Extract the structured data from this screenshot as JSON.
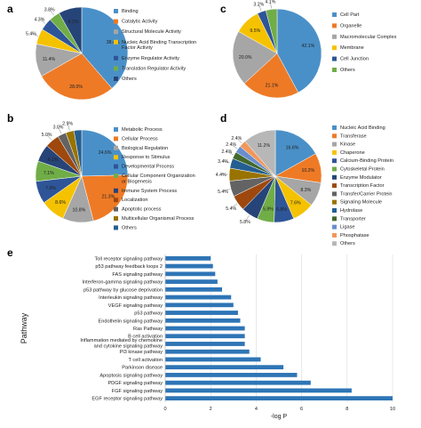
{
  "colors": {
    "blue": "#4a90c8",
    "orange": "#ee7a26",
    "gray": "#a6a6a6",
    "yellow": "#f5c200",
    "navy": "#2e5597",
    "green": "#70ad47",
    "darkblue": "#264478",
    "brown": "#9e480e",
    "darkgray": "#636363",
    "olive": "#997300",
    "steel": "#255e91",
    "darkgreen": "#43682b",
    "lightblue": "#698ed0",
    "lightorange": "#f1975a",
    "lightgray": "#b7b7b7",
    "bar": "#2e75b6"
  },
  "chart_data": [
    {
      "panel": "a",
      "type": "pie",
      "labels": [
        "Binding",
        "Catalytic Activity",
        "Structural Molecule Activity",
        "Nucleic Acid Binding Transcription Factor Activity",
        "Enzyme Regulator Activity",
        "Translation Regulator Activity",
        "Others"
      ],
      "values": [
        38.4,
        28.0,
        11.4,
        5.4,
        4.3,
        3.8,
        8.1
      ],
      "value_labels": [
        "38.4%",
        "28.0%",
        "11.4%",
        "5.4%",
        "4.3%",
        "3.8%",
        "8.1%"
      ],
      "color_keys": [
        "blue",
        "orange",
        "gray",
        "yellow",
        "navy",
        "green",
        "darkblue"
      ]
    },
    {
      "panel": "c",
      "type": "pie",
      "labels": [
        "Cell Part",
        "Organelle",
        "Macromolecular Complex",
        "Membrane",
        "Cell Junction",
        "Others"
      ],
      "values": [
        42.1,
        21.1,
        20.0,
        9.5,
        3.2,
        4.1
      ],
      "value_labels": [
        "42.1%",
        "21.1%",
        "20.0%",
        "9.5%",
        "3.2%",
        "4.1%"
      ],
      "color_keys": [
        "blue",
        "orange",
        "gray",
        "yellow",
        "navy",
        "green"
      ]
    },
    {
      "panel": "b",
      "type": "pie",
      "labels": [
        "Metabolic Process",
        "Cellular Process",
        "Biological Regulation",
        "Response to Stimulus",
        "Developmental Process",
        "Cellular Component Organization or Biogenesis",
        "Immune System Process",
        "Localization",
        "Apoptotic process",
        "Multicellular Organismal Process",
        "Others"
      ],
      "values": [
        24.6,
        21.3,
        10.8,
        8.6,
        7.9,
        7.1,
        6.1,
        5.0,
        3.0,
        2.9,
        2.7
      ],
      "value_labels": [
        "24.6%",
        "21.3%",
        "10.8%",
        "8.6%",
        "7.9%",
        "7.1%",
        "6.1%",
        "5.0%",
        "3.0%",
        "2.9%",
        ""
      ],
      "color_keys": [
        "blue",
        "orange",
        "gray",
        "yellow",
        "navy",
        "green",
        "darkblue",
        "brown",
        "darkgray",
        "olive",
        "steel"
      ]
    },
    {
      "panel": "d",
      "type": "pie",
      "labels": [
        "Nucleic Acid Binding",
        "Transferase",
        "Kinase",
        "Chaperone",
        "Calcium-Binding Protein",
        "Cytoskeletal Protein",
        "Enzyme Modulator",
        "Transcription Factor",
        "Transfer/Carrier Protein",
        "Signaling Molecule",
        "Hydrolase",
        "Transporter",
        "Ligase",
        "Phosphatase",
        "Others"
      ],
      "values": [
        16.6,
        10.2,
        8.3,
        7.6,
        6.8,
        5.9,
        5.8,
        5.4,
        5.4,
        4.4,
        3.4,
        2.4,
        2.4,
        2.4,
        11.2
      ],
      "value_labels": [
        "16.6%",
        "10.2%",
        "8.3%",
        "7.6%",
        "6.8%",
        "5.9%",
        "5.8%",
        "5.4%",
        "5.4%",
        "4.4%",
        "3.4%",
        "2.4%",
        "2.4%",
        "2.4%",
        "11.2%"
      ],
      "color_keys": [
        "blue",
        "orange",
        "gray",
        "yellow",
        "navy",
        "green",
        "darkblue",
        "brown",
        "darkgray",
        "olive",
        "steel",
        "darkgreen",
        "lightblue",
        "lightorange",
        "lightgray"
      ]
    },
    {
      "panel": "e",
      "type": "bar",
      "orientation": "horizontal",
      "ylabel": "Pathway",
      "xlabel": "-log P",
      "xlim": [
        0,
        10
      ],
      "xticks": [
        0,
        2,
        4,
        6,
        8,
        10
      ],
      "grid": "vertical",
      "categories": [
        "Toll receptor signaling pathway",
        "p53 pathway feedback loops 2",
        "FAS signaling pathway",
        "Interferon-gamma signaling pathway",
        "p53 pathway by glucose deprivation",
        "Interleukin signaling pathway",
        "VEGF signaling pathway",
        "p53 pathway",
        "Endothelin signaling pathway",
        "Ras Pathway",
        "B cell activation",
        "Inflammation mediated by chemokine and cytokine signaling pathway",
        "PI3 kinase pathway",
        "T cell activation",
        "Parkinson disease",
        "Apoptosis signaling pathway",
        "PDGF signaling pathway",
        "FGF signaling pathway",
        "EGF receptor signaling pathway"
      ],
      "values": [
        2.0,
        2.1,
        2.2,
        2.3,
        2.5,
        2.9,
        3.0,
        3.2,
        3.3,
        3.5,
        3.5,
        3.5,
        3.7,
        4.2,
        5.2,
        5.8,
        6.4,
        8.2,
        10.0
      ]
    }
  ],
  "letters": {
    "a": "a",
    "b": "b",
    "c": "c",
    "d": "d",
    "e": "e"
  }
}
